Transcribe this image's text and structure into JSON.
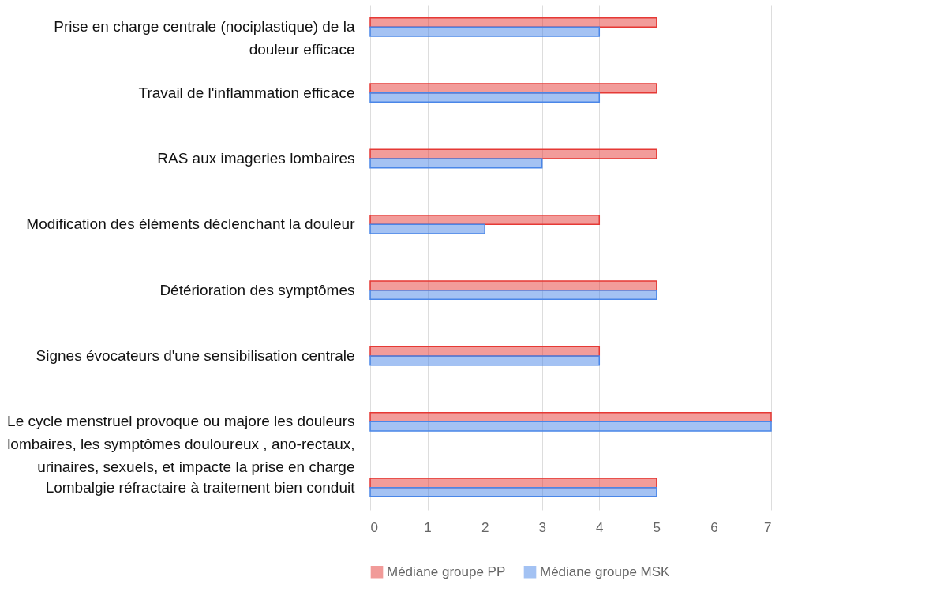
{
  "chart_data": {
    "type": "bar",
    "orientation": "horizontal",
    "categories": [
      "Prise en charge centrale (nociplastique) de la douleur efficace",
      "Travail de l'inflammation efficace",
      "RAS aux imageries lombaires",
      "Modification des éléments déclenchant la douleur",
      "Détérioration des symptômes",
      "Signes évocateurs d'une sensibilisation centrale",
      "Le cycle menstruel provoque ou majore les douleurs lombaires, les symptômes douloureux , ano-rectaux, urinaires, sexuels, et impacte la prise en charge",
      "Lombalgie réfractaire à traitement bien conduit"
    ],
    "series": [
      {
        "name": "Médiane groupe PP",
        "color": "#e53935",
        "values": [
          5,
          5,
          5,
          4,
          5,
          4,
          7,
          5
        ]
      },
      {
        "name": "Médiane groupe MSK",
        "color": "#4a86e8",
        "values": [
          4,
          4,
          3,
          2,
          5,
          4,
          7,
          5
        ]
      }
    ],
    "xlim": [
      0,
      7
    ],
    "xticks": [
      0,
      1,
      2,
      3,
      4,
      5,
      6,
      7
    ],
    "grid": "x",
    "legend": "bottom"
  }
}
